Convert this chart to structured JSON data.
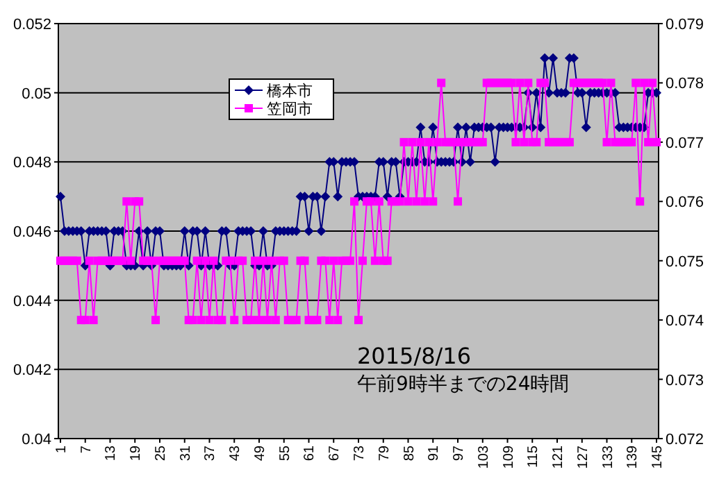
{
  "chart_data": {
    "type": "line",
    "x": [
      1,
      2,
      3,
      4,
      5,
      6,
      7,
      8,
      9,
      10,
      11,
      12,
      13,
      14,
      15,
      16,
      17,
      18,
      19,
      20,
      21,
      22,
      23,
      24,
      25,
      26,
      27,
      28,
      29,
      30,
      31,
      32,
      33,
      34,
      35,
      36,
      37,
      38,
      39,
      40,
      41,
      42,
      43,
      44,
      45,
      46,
      47,
      48,
      49,
      50,
      51,
      52,
      53,
      54,
      55,
      56,
      57,
      58,
      59,
      60,
      61,
      62,
      63,
      64,
      65,
      66,
      67,
      68,
      69,
      70,
      71,
      72,
      73,
      74,
      75,
      76,
      77,
      78,
      79,
      80,
      81,
      82,
      83,
      84,
      85,
      86,
      87,
      88,
      89,
      90,
      91,
      92,
      93,
      94,
      95,
      96,
      97,
      98,
      99,
      100,
      101,
      102,
      103,
      104,
      105,
      106,
      107,
      108,
      109,
      110,
      111,
      112,
      113,
      114,
      115,
      116,
      117,
      118,
      119,
      120,
      121,
      122,
      123,
      124,
      125,
      126,
      127,
      128,
      129,
      130,
      131,
      132,
      133,
      134,
      135,
      136,
      137,
      138,
      139,
      140,
      141,
      142,
      143,
      144,
      145
    ],
    "xlim": [
      0.5,
      145.5
    ],
    "xticks": [
      1,
      7,
      13,
      19,
      25,
      31,
      37,
      43,
      49,
      55,
      61,
      67,
      73,
      79,
      85,
      91,
      97,
      103,
      109,
      115,
      121,
      127,
      133,
      139,
      145
    ],
    "ylim": [
      0.04,
      0.052
    ],
    "yticks": [
      0.04,
      0.042,
      0.044,
      0.046,
      0.048,
      0.05,
      0.052
    ],
    "y2lim": [
      0.072,
      0.079
    ],
    "y2ticks": [
      0.072,
      0.073,
      0.074,
      0.075,
      0.076,
      0.077,
      0.078,
      0.079
    ],
    "grid": "y",
    "legend": "top left",
    "series": [
      {
        "name": "橋本市",
        "color": "#000080",
        "marker": "diamond",
        "values": [
          0.047,
          0.046,
          0.046,
          0.046,
          0.046,
          0.046,
          0.045,
          0.046,
          0.046,
          0.046,
          0.046,
          0.046,
          0.045,
          0.046,
          0.046,
          0.046,
          0.045,
          0.045,
          0.045,
          0.046,
          0.045,
          0.046,
          0.045,
          0.046,
          0.046,
          0.045,
          0.045,
          0.045,
          0.045,
          0.045,
          0.046,
          0.045,
          0.046,
          0.046,
          0.045,
          0.046,
          0.045,
          0.045,
          0.045,
          0.046,
          0.046,
          0.045,
          0.045,
          0.046,
          0.046,
          0.046,
          0.046,
          0.045,
          0.045,
          0.046,
          0.045,
          0.045,
          0.046,
          0.046,
          0.046,
          0.046,
          0.046,
          0.046,
          0.047,
          0.047,
          0.046,
          0.047,
          0.047,
          0.046,
          0.047,
          0.048,
          0.048,
          0.047,
          0.048,
          0.048,
          0.048,
          0.048,
          0.047,
          0.047,
          0.047,
          0.047,
          0.047,
          0.048,
          0.048,
          0.047,
          0.048,
          0.048,
          0.047,
          0.048,
          0.048,
          0.048,
          0.048,
          0.049,
          0.048,
          0.048,
          0.049,
          0.048,
          0.048,
          0.048,
          0.048,
          0.048,
          0.049,
          0.048,
          0.049,
          0.048,
          0.049,
          0.049,
          0.049,
          0.049,
          0.049,
          0.048,
          0.049,
          0.049,
          0.049,
          0.049,
          0.049,
          0.049,
          0.049,
          0.05,
          0.049,
          0.05,
          0.049,
          0.051,
          0.05,
          0.051,
          0.05,
          0.05,
          0.05,
          0.051,
          0.051,
          0.05,
          0.05,
          0.049,
          0.05,
          0.05,
          0.05,
          0.05,
          0.05,
          0.05,
          0.05,
          0.049,
          0.049,
          0.049,
          0.049,
          0.049,
          0.049,
          0.049,
          0.05,
          0.05,
          0.05
        ]
      },
      {
        "name": "笠岡市",
        "color": "#ff00ff",
        "marker": "square",
        "axis": "y2",
        "values": [
          0.075,
          0.075,
          0.075,
          0.075,
          0.075,
          0.074,
          0.074,
          0.075,
          0.074,
          0.075,
          0.075,
          0.075,
          0.075,
          0.075,
          0.075,
          0.075,
          0.076,
          0.075,
          0.076,
          0.076,
          0.075,
          0.075,
          0.075,
          0.074,
          0.075,
          0.075,
          0.075,
          0.075,
          0.075,
          0.075,
          0.075,
          0.074,
          0.074,
          0.075,
          0.074,
          0.075,
          0.074,
          0.075,
          0.074,
          0.074,
          0.075,
          0.075,
          0.074,
          0.075,
          0.075,
          0.074,
          0.074,
          0.075,
          0.074,
          0.075,
          0.074,
          0.075,
          0.074,
          0.075,
          0.075,
          0.074,
          0.074,
          0.074,
          0.075,
          0.075,
          0.074,
          0.074,
          0.074,
          0.075,
          0.075,
          0.074,
          0.075,
          0.074,
          0.075,
          0.075,
          0.075,
          0.076,
          0.074,
          0.075,
          0.076,
          0.076,
          0.075,
          0.076,
          0.075,
          0.075,
          0.076,
          0.076,
          0.076,
          0.077,
          0.076,
          0.077,
          0.076,
          0.077,
          0.076,
          0.077,
          0.076,
          0.077,
          0.078,
          0.077,
          0.077,
          0.077,
          0.076,
          0.077,
          0.077,
          0.077,
          0.077,
          0.077,
          0.077,
          0.078,
          0.078,
          0.078,
          0.078,
          0.078,
          0.078,
          0.078,
          0.077,
          0.078,
          0.077,
          0.078,
          0.077,
          0.077,
          0.078,
          0.078,
          0.077,
          0.077,
          0.077,
          0.077,
          0.077,
          0.077,
          0.078,
          0.078,
          0.078,
          0.078,
          0.078,
          0.078,
          0.078,
          0.078,
          0.077,
          0.078,
          0.077,
          0.077,
          0.077,
          0.077,
          0.077,
          0.078,
          0.076,
          0.078,
          0.077,
          0.078,
          0.077
        ]
      }
    ],
    "annotations": [
      "2015/8/16",
      "午前9時半までの24時間"
    ]
  }
}
